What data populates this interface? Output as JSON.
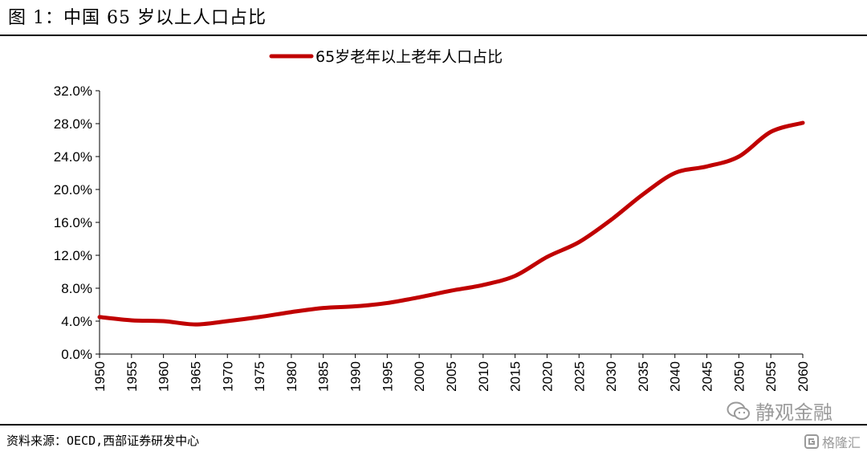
{
  "figure": {
    "title": "图 1：中国 65 岁以上人口占比",
    "source": "资料来源：OECD,西部证券研发中心",
    "watermark": "静观金融",
    "watermark_small": "格隆汇"
  },
  "chart_data": {
    "type": "line",
    "title": "",
    "xlabel": "",
    "ylabel": "",
    "legend_position": "top-center",
    "grid": false,
    "ylim": [
      0,
      32
    ],
    "y_ticks": [
      "0.0%",
      "4.0%",
      "8.0%",
      "12.0%",
      "16.0%",
      "20.0%",
      "24.0%",
      "28.0%",
      "32.0%"
    ],
    "categories": [
      "1950",
      "1955",
      "1960",
      "1965",
      "1970",
      "1975",
      "1980",
      "1985",
      "1990",
      "1995",
      "2000",
      "2005",
      "2010",
      "2015",
      "2020",
      "2025",
      "2030",
      "2035",
      "2040",
      "2045",
      "2050",
      "2055",
      "2060"
    ],
    "series": [
      {
        "name": "65岁老年以上老年人口占比",
        "color": "#c00000",
        "values": [
          4.5,
          4.1,
          4.0,
          3.6,
          4.0,
          4.5,
          5.1,
          5.6,
          5.8,
          6.2,
          6.9,
          7.7,
          8.4,
          9.5,
          11.8,
          13.6,
          16.3,
          19.4,
          22.0,
          22.8,
          24.0,
          27.0,
          28.1
        ]
      }
    ]
  }
}
